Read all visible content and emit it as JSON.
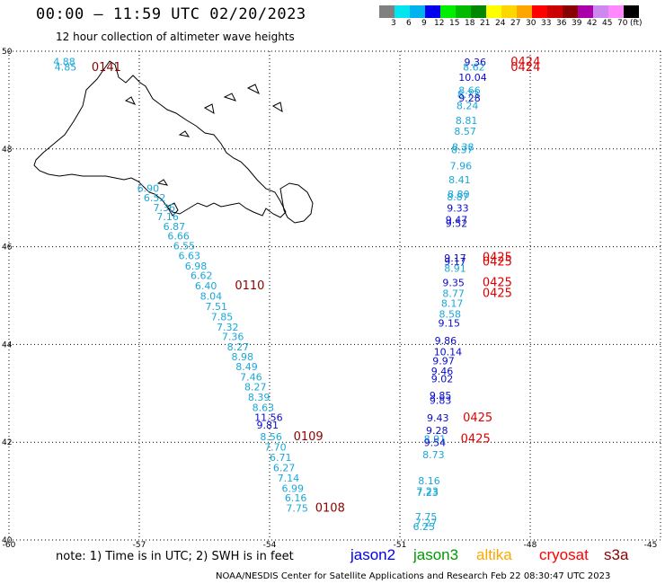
{
  "title": "00:00 – 11:59 UTC 02/20/2023",
  "subtitle": "12 hour collection of altimeter wave heights",
  "colorbar": {
    "unit": "(ft)",
    "swatches": [
      {
        "label": "3",
        "color": "#808080"
      },
      {
        "label": "6",
        "color": "#00e5ee"
      },
      {
        "label": "9",
        "color": "#00b2ee"
      },
      {
        "label": "12",
        "color": "#0000ee"
      },
      {
        "label": "15",
        "color": "#00ee00"
      },
      {
        "label": "18",
        "color": "#00bb00"
      },
      {
        "label": "21",
        "color": "#008800"
      },
      {
        "label": "24",
        "color": "#ffff00"
      },
      {
        "label": "27",
        "color": "#ffd700"
      },
      {
        "label": "30",
        "color": "#ffa500"
      },
      {
        "label": "33",
        "color": "#ff0000"
      },
      {
        "label": "36",
        "color": "#cc0000"
      },
      {
        "label": "39",
        "color": "#880000"
      },
      {
        "label": "42",
        "color": "#aa00aa"
      },
      {
        "label": "45",
        "color": "#cc88ee"
      },
      {
        "label": "70",
        "color": "#ff88ff"
      },
      {
        "label": "",
        "color": "#000000"
      }
    ]
  },
  "axes": {
    "lon_ticks": [
      "-60",
      "-57",
      "-54",
      "-51",
      "-48",
      "-45"
    ],
    "lat_ticks": [
      "50",
      "48",
      "46",
      "44",
      "42",
      "40"
    ]
  },
  "colors": {
    "light_blue": "#1aa7d8",
    "dark_blue": "#0a0acc",
    "dark_red": "#8b0000",
    "red": "#e00000"
  },
  "labels_left": [
    {
      "v": "4.88",
      "lon": -58.98,
      "lat": 49.79,
      "c": "light_blue"
    },
    {
      "v": "4.85",
      "lon": -58.95,
      "lat": 49.68,
      "c": "light_blue"
    },
    {
      "v": "0141",
      "lon": -58.1,
      "lat": 49.67,
      "c": "dark_red"
    },
    {
      "v": "6.90",
      "lon": -57.05,
      "lat": 47.2,
      "c": "light_blue"
    },
    {
      "v": "6.52",
      "lon": -56.9,
      "lat": 47.0,
      "c": "light_blue"
    },
    {
      "v": "7.36",
      "lon": -56.68,
      "lat": 46.8,
      "c": "light_blue"
    },
    {
      "v": "7.16",
      "lon": -56.6,
      "lat": 46.62,
      "c": "light_blue"
    },
    {
      "v": "6.87",
      "lon": -56.45,
      "lat": 46.42,
      "c": "light_blue"
    },
    {
      "v": "6.66",
      "lon": -56.35,
      "lat": 46.22,
      "c": "light_blue"
    },
    {
      "v": "6.55",
      "lon": -56.22,
      "lat": 46.02,
      "c": "light_blue"
    },
    {
      "v": "6.63",
      "lon": -56.1,
      "lat": 45.82,
      "c": "light_blue"
    },
    {
      "v": "6.98",
      "lon": -55.95,
      "lat": 45.61,
      "c": "light_blue"
    },
    {
      "v": "6.62",
      "lon": -55.82,
      "lat": 45.41,
      "c": "light_blue"
    },
    {
      "v": "6.40",
      "lon": -55.72,
      "lat": 45.2,
      "c": "light_blue"
    },
    {
      "v": "0110",
      "lon": -54.8,
      "lat": 45.2,
      "c": "dark_red"
    },
    {
      "v": "8.04",
      "lon": -55.6,
      "lat": 44.99,
      "c": "light_blue"
    },
    {
      "v": "7.51",
      "lon": -55.48,
      "lat": 44.78,
      "c": "light_blue"
    },
    {
      "v": "7.85",
      "lon": -55.35,
      "lat": 44.57,
      "c": "light_blue"
    },
    {
      "v": "7.32",
      "lon": -55.22,
      "lat": 44.36,
      "c": "light_blue"
    },
    {
      "v": "7.36",
      "lon": -55.1,
      "lat": 44.16,
      "c": "light_blue"
    },
    {
      "v": "8.27",
      "lon": -54.98,
      "lat": 43.95,
      "c": "light_blue"
    },
    {
      "v": "8.98",
      "lon": -54.88,
      "lat": 43.75,
      "c": "light_blue"
    },
    {
      "v": "8.49",
      "lon": -54.78,
      "lat": 43.55,
      "c": "light_blue"
    },
    {
      "v": "7.46",
      "lon": -54.68,
      "lat": 43.34,
      "c": "light_blue"
    },
    {
      "v": "8.27",
      "lon": -54.58,
      "lat": 43.13,
      "c": "light_blue"
    },
    {
      "v": "8.39",
      "lon": -54.5,
      "lat": 42.92,
      "c": "light_blue"
    },
    {
      "v": "8.63",
      "lon": -54.4,
      "lat": 42.71,
      "c": "light_blue"
    },
    {
      "v": "11.56",
      "lon": -54.35,
      "lat": 42.51,
      "c": "dark_blue"
    },
    {
      "v": "9.81",
      "lon": -54.3,
      "lat": 42.35,
      "c": "dark_blue"
    },
    {
      "v": "8.56",
      "lon": -54.22,
      "lat": 42.11,
      "c": "light_blue"
    },
    {
      "v": "0109",
      "lon": -53.45,
      "lat": 42.11,
      "c": "dark_red"
    },
    {
      "v": "7.70",
      "lon": -54.12,
      "lat": 41.9,
      "c": "light_blue"
    },
    {
      "v": "6.71",
      "lon": -54.0,
      "lat": 41.69,
      "c": "light_blue"
    },
    {
      "v": "6.27",
      "lon": -53.92,
      "lat": 41.48,
      "c": "light_blue"
    },
    {
      "v": "7.14",
      "lon": -53.82,
      "lat": 41.27,
      "c": "light_blue"
    },
    {
      "v": "6.99",
      "lon": -53.72,
      "lat": 41.06,
      "c": "light_blue"
    },
    {
      "v": "6.16",
      "lon": -53.65,
      "lat": 40.86,
      "c": "light_blue"
    },
    {
      "v": "7.75",
      "lon": -53.62,
      "lat": 40.65,
      "c": "light_blue"
    },
    {
      "v": "0108",
      "lon": -52.95,
      "lat": 40.65,
      "c": "dark_red"
    }
  ],
  "labels_right": [
    {
      "v": "9.36",
      "lon": -49.52,
      "lat": 49.78,
      "c": "dark_blue"
    },
    {
      "v": "0424",
      "lon": -48.45,
      "lat": 49.78,
      "c": "red"
    },
    {
      "v": "8.62",
      "lon": -49.55,
      "lat": 49.68,
      "c": "light_blue"
    },
    {
      "v": "0424",
      "lon": -48.45,
      "lat": 49.67,
      "c": "red"
    },
    {
      "v": "10.04",
      "lon": -49.65,
      "lat": 49.47,
      "c": "dark_blue"
    },
    {
      "v": "8.66",
      "lon": -49.65,
      "lat": 49.2,
      "c": "light_blue"
    },
    {
      "v": "8.73",
      "lon": -49.68,
      "lat": 49.12,
      "c": "light_blue"
    },
    {
      "v": "9.28",
      "lon": -49.65,
      "lat": 49.04,
      "c": "dark_blue"
    },
    {
      "v": "8.24",
      "lon": -49.7,
      "lat": 48.89,
      "c": "light_blue"
    },
    {
      "v": "8.81",
      "lon": -49.72,
      "lat": 48.58,
      "c": "light_blue"
    },
    {
      "v": "8.57",
      "lon": -49.75,
      "lat": 48.36,
      "c": "light_blue"
    },
    {
      "v": "8.38",
      "lon": -49.8,
      "lat": 48.04,
      "c": "light_blue"
    },
    {
      "v": "8.37",
      "lon": -49.82,
      "lat": 47.99,
      "c": "light_blue"
    },
    {
      "v": "7.96",
      "lon": -49.85,
      "lat": 47.66,
      "c": "light_blue"
    },
    {
      "v": "8.41",
      "lon": -49.88,
      "lat": 47.37,
      "c": "light_blue"
    },
    {
      "v": "8.80",
      "lon": -49.9,
      "lat": 47.08,
      "c": "light_blue"
    },
    {
      "v": "8.87",
      "lon": -49.92,
      "lat": 47.02,
      "c": "light_blue"
    },
    {
      "v": "9.33",
      "lon": -49.92,
      "lat": 46.79,
      "c": "dark_blue"
    },
    {
      "v": "9.47",
      "lon": -49.95,
      "lat": 46.55,
      "c": "dark_blue"
    },
    {
      "v": "9.52",
      "lon": -49.95,
      "lat": 46.48,
      "c": "dark_blue"
    },
    {
      "v": "9.17",
      "lon": -49.98,
      "lat": 45.77,
      "c": "dark_blue"
    },
    {
      "v": "0425",
      "lon": -49.1,
      "lat": 45.78,
      "c": "red"
    },
    {
      "v": "9.17",
      "lon": -49.98,
      "lat": 45.7,
      "c": "dark_blue"
    },
    {
      "v": "0425",
      "lon": -49.1,
      "lat": 45.69,
      "c": "red"
    },
    {
      "v": "8.91",
      "lon": -49.98,
      "lat": 45.56,
      "c": "light_blue"
    },
    {
      "v": "9.35",
      "lon": -50.02,
      "lat": 45.27,
      "c": "dark_blue"
    },
    {
      "v": "0425",
      "lon": -49.1,
      "lat": 45.27,
      "c": "red"
    },
    {
      "v": "8.77",
      "lon": -50.02,
      "lat": 45.05,
      "c": "light_blue"
    },
    {
      "v": "0425",
      "lon": -49.1,
      "lat": 45.05,
      "c": "red"
    },
    {
      "v": "8.17",
      "lon": -50.05,
      "lat": 44.84,
      "c": "light_blue"
    },
    {
      "v": "8.58",
      "lon": -50.1,
      "lat": 44.62,
      "c": "light_blue"
    },
    {
      "v": "9.15",
      "lon": -50.12,
      "lat": 44.44,
      "c": "dark_blue"
    },
    {
      "v": "9.86",
      "lon": -50.2,
      "lat": 44.08,
      "c": "dark_blue"
    },
    {
      "v": "10.14",
      "lon": -50.22,
      "lat": 43.85,
      "c": "dark_blue"
    },
    {
      "v": "9.97",
      "lon": -50.25,
      "lat": 43.67,
      "c": "dark_blue"
    },
    {
      "v": "9.46",
      "lon": -50.28,
      "lat": 43.46,
      "c": "dark_blue"
    },
    {
      "v": "9.02",
      "lon": -50.28,
      "lat": 43.3,
      "c": "dark_blue"
    },
    {
      "v": "9.85",
      "lon": -50.32,
      "lat": 42.96,
      "c": "dark_blue"
    },
    {
      "v": "9.83",
      "lon": -50.32,
      "lat": 42.86,
      "c": "dark_blue"
    },
    {
      "v": "9.43",
      "lon": -50.38,
      "lat": 42.5,
      "c": "dark_blue"
    },
    {
      "v": "0425",
      "lon": -49.55,
      "lat": 42.5,
      "c": "red"
    },
    {
      "v": "9.28",
      "lon": -50.4,
      "lat": 42.24,
      "c": "dark_blue"
    },
    {
      "v": "8.91",
      "lon": -50.45,
      "lat": 42.07,
      "c": "light_blue"
    },
    {
      "v": "9.54",
      "lon": -50.45,
      "lat": 41.99,
      "c": "dark_blue"
    },
    {
      "v": "0425",
      "lon": -49.6,
      "lat": 42.07,
      "c": "red"
    },
    {
      "v": "8.73",
      "lon": -50.48,
      "lat": 41.75,
      "c": "light_blue"
    },
    {
      "v": "8.16",
      "lon": -50.58,
      "lat": 41.21,
      "c": "light_blue"
    },
    {
      "v": "7.23",
      "lon": -50.62,
      "lat": 41.0,
      "c": "light_blue"
    },
    {
      "v": "7.23",
      "lon": -50.62,
      "lat": 40.97,
      "c": "light_blue"
    },
    {
      "v": "7.75",
      "lon": -50.65,
      "lat": 40.48,
      "c": "light_blue"
    },
    {
      "v": "7.27",
      "lon": -50.65,
      "lat": 40.36,
      "c": "light_blue"
    },
    {
      "v": "6.25",
      "lon": -50.7,
      "lat": 40.28,
      "c": "light_blue"
    }
  ],
  "footer": {
    "note": "note: 1) Time is in UTC; 2) SWH is in feet",
    "credit": "NOAA/NESDIS Center for Satellite Applications and Research    Feb 22 08:30:47 UTC 2023"
  },
  "legend": [
    {
      "name": "jason2",
      "color": "#0000ee"
    },
    {
      "name": "jason3",
      "color": "#009900"
    },
    {
      "name": "altika",
      "color": "#ffa500"
    },
    {
      "name": "cryosat",
      "color": "#ff0000"
    },
    {
      "name": "s3a",
      "color": "#8b0000"
    }
  ]
}
